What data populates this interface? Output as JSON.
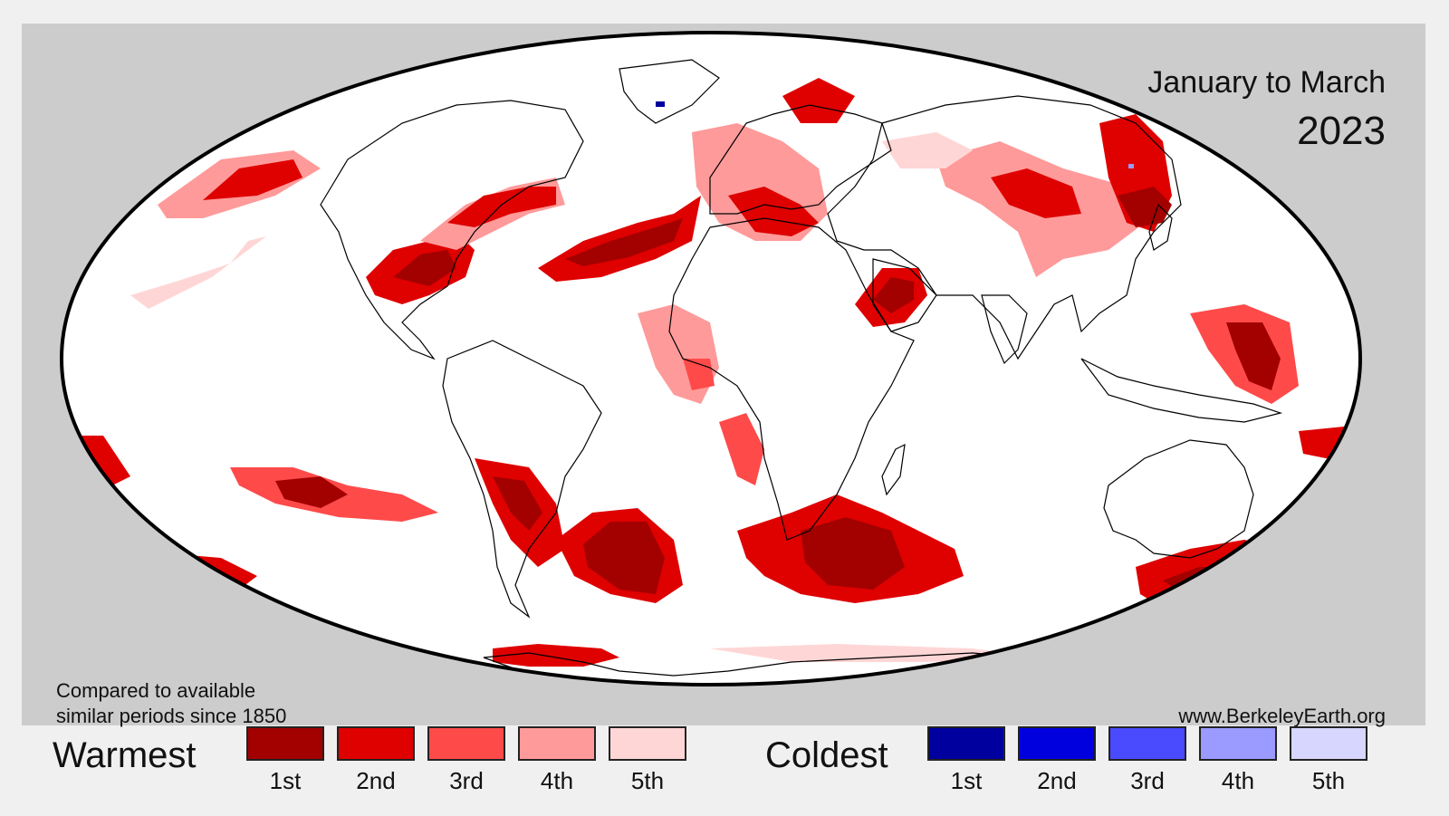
{
  "title": {
    "period": "January to March",
    "year": "2023"
  },
  "notes": {
    "line1": "Compared to available",
    "line2": "similar periods since 1850"
  },
  "source": "www.BerkeleyEarth.org",
  "legend": {
    "warm": {
      "title": "Warmest",
      "items": [
        {
          "label": "1st",
          "color": "#a30000"
        },
        {
          "label": "2nd",
          "color": "#df0000"
        },
        {
          "label": "3rd",
          "color": "#ff4a4a"
        },
        {
          "label": "4th",
          "color": "#ff9a9a"
        },
        {
          "label": "5th",
          "color": "#ffd6d6"
        }
      ]
    },
    "cold": {
      "title": "Coldest",
      "items": [
        {
          "label": "1st",
          "color": "#00009e"
        },
        {
          "label": "2nd",
          "color": "#0000df"
        },
        {
          "label": "3rd",
          "color": "#4a4aff"
        },
        {
          "label": "4th",
          "color": "#9a9aff"
        },
        {
          "label": "5th",
          "color": "#d6d6ff"
        }
      ]
    }
  },
  "colors": {
    "panel_background": "#cccccc",
    "map_ocean_land": "#ffffff",
    "outline": "#000000"
  }
}
